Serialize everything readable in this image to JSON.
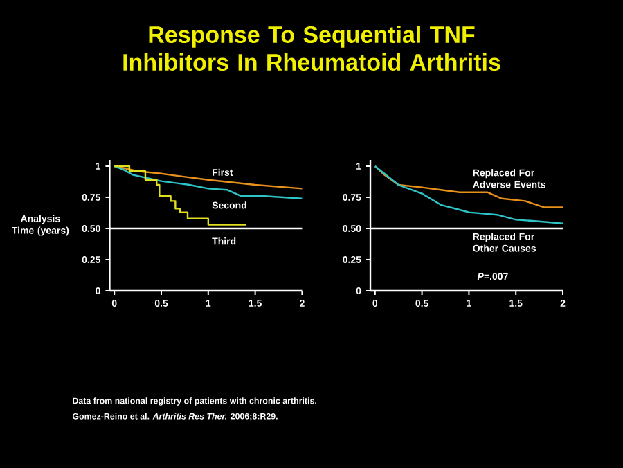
{
  "chart_data": [
    {
      "type": "line",
      "title": "Response To Sequential TNF Inhibitors In Rheumatoid Arthritis",
      "ylabel": "Analysis Time (years)",
      "xlim": [
        -0.05,
        2
      ],
      "ylim": [
        0,
        1.05
      ],
      "xticks": [
        0,
        0.5,
        1,
        1.5,
        2
      ],
      "yticks": [
        0,
        0.25,
        {
          "value": 0.5,
          "label": "0.50"
        },
        0.75,
        1
      ],
      "series": [
        {
          "name": "First",
          "color": "#e8901c",
          "x": [
            0,
            0.25,
            0.5,
            1,
            1.5,
            2
          ],
          "values": [
            1,
            0.96,
            0.94,
            0.89,
            0.85,
            0.82
          ]
        },
        {
          "name": "Second",
          "color": "#2ec4c8",
          "x": [
            0,
            0.1,
            0.2,
            0.5,
            0.8,
            1.0,
            1.2,
            1.35,
            1.6,
            1.8,
            2
          ],
          "values": [
            1,
            0.97,
            0.93,
            0.88,
            0.85,
            0.82,
            0.81,
            0.76,
            0.76,
            0.75,
            0.74
          ]
        },
        {
          "name": "Third",
          "color": "#e0e020",
          "x": [
            0,
            0.16,
            0.16,
            0.33,
            0.33,
            0.45,
            0.45,
            0.48,
            0.48,
            0.6,
            0.6,
            0.65,
            0.65,
            0.7,
            0.7,
            0.78,
            0.78,
            1.0,
            1.0,
            1.4
          ],
          "values": [
            1,
            1,
            0.96,
            0.96,
            0.89,
            0.89,
            0.85,
            0.85,
            0.76,
            0.76,
            0.72,
            0.72,
            0.66,
            0.66,
            0.63,
            0.63,
            0.58,
            0.58,
            0.53,
            0.53
          ]
        }
      ],
      "ref_lines": [
        {
          "axis": "y",
          "value": 0.5,
          "color": "#ffffff"
        }
      ],
      "annotations": [
        "Data from national registry of patients with chronic arthritis.",
        "Gomez-Reino et al.  *Arthritis Res Ther.*  2006;8:R29."
      ]
    },
    {
      "type": "line",
      "xlim": [
        -0.05,
        2
      ],
      "ylim": [
        0,
        1.05
      ],
      "xticks": [
        0,
        0.5,
        1,
        1.5,
        2
      ],
      "yticks": [
        0,
        0.25,
        {
          "value": 0.5,
          "label": "0.50"
        },
        0.75,
        1
      ],
      "series": [
        {
          "name": "Replaced For Adverse Events",
          "color": "#e8901c",
          "x": [
            0,
            0.1,
            0.25,
            0.5,
            0.7,
            0.9,
            1.2,
            1.35,
            1.6,
            1.8,
            2
          ],
          "values": [
            1,
            0.93,
            0.85,
            0.83,
            0.81,
            0.79,
            0.79,
            0.74,
            0.72,
            0.67,
            0.67
          ]
        },
        {
          "name": "Replaced For Other Causes",
          "color": "#2ec4c8",
          "x": [
            0,
            0.1,
            0.25,
            0.5,
            0.7,
            0.9,
            1.0,
            1.3,
            1.5,
            1.7,
            2
          ],
          "values": [
            1,
            0.94,
            0.85,
            0.78,
            0.69,
            0.65,
            0.63,
            0.61,
            0.57,
            0.56,
            0.54
          ]
        }
      ],
      "ref_lines": [
        {
          "axis": "y",
          "value": 0.5,
          "color": "#ffffff"
        }
      ],
      "annotations": [
        "*P*=.007"
      ]
    }
  ]
}
